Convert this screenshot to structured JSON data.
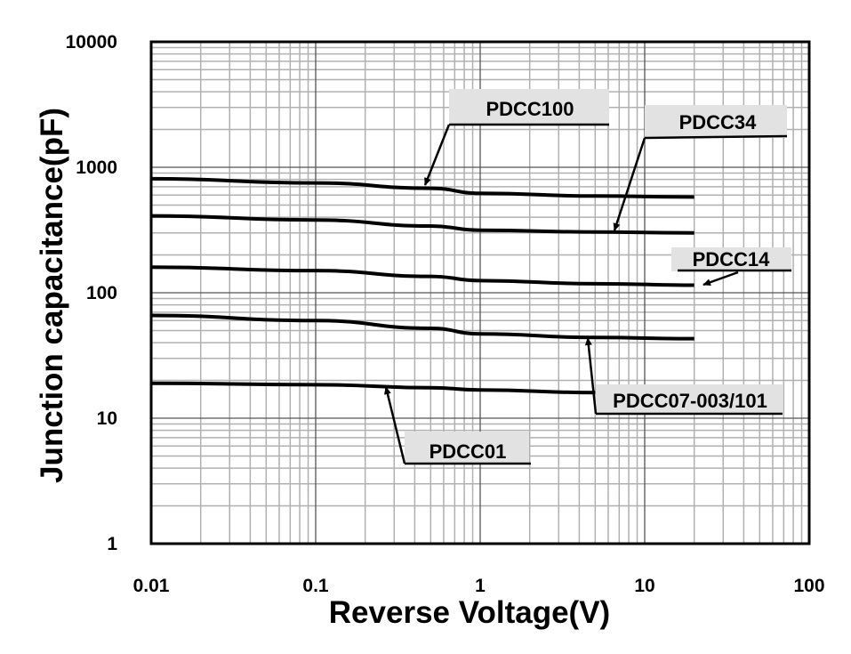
{
  "chart_data": {
    "type": "line",
    "title": "",
    "xlabel": "Reverse Voltage(V)",
    "ylabel": "Junction capacitance(pF)",
    "xscale": "log",
    "yscale": "log",
    "xlim": [
      0.01,
      100
    ],
    "ylim": [
      1,
      10000
    ],
    "grid": true,
    "x_ticks": [
      "0.01",
      "0.1",
      "1",
      "10",
      "100"
    ],
    "y_ticks": [
      "1",
      "10",
      "100",
      "1000",
      "10000"
    ],
    "series": [
      {
        "name": "PDCC100",
        "x": [
          0.01,
          0.1,
          0.5,
          1,
          5,
          20
        ],
        "values": [
          810,
          750,
          680,
          620,
          590,
          580
        ]
      },
      {
        "name": "PDCC34",
        "x": [
          0.01,
          0.1,
          0.5,
          1,
          5,
          20
        ],
        "values": [
          410,
          380,
          340,
          315,
          305,
          300
        ]
      },
      {
        "name": "PDCC14",
        "x": [
          0.01,
          0.1,
          0.5,
          1,
          5,
          20
        ],
        "values": [
          160,
          150,
          135,
          125,
          118,
          115
        ]
      },
      {
        "name": "PDCC07-003/101",
        "x": [
          0.01,
          0.1,
          0.5,
          1,
          5,
          20
        ],
        "values": [
          66,
          60,
          52,
          47,
          44,
          43
        ]
      },
      {
        "name": "PDCC01",
        "x": [
          0.01,
          0.1,
          0.5,
          1,
          5
        ],
        "values": [
          19,
          18.5,
          17.5,
          16.8,
          16
        ]
      }
    ],
    "annotations": [
      "PDCC100",
      "PDCC34",
      "PDCC14",
      "PDCC07-003/101",
      "PDCC01"
    ],
    "colors": {
      "line": "#000000",
      "major_grid": "#555555",
      "minor_grid": "#b0b0b0",
      "label_box": "#e2e2e2"
    }
  }
}
